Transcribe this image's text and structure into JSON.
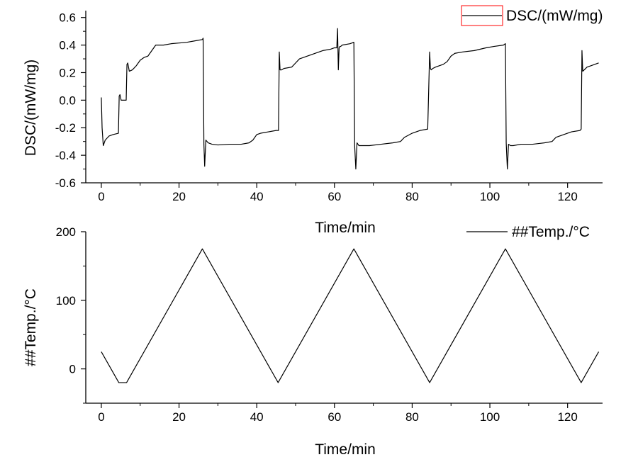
{
  "chart_data": [
    {
      "type": "line",
      "xlabel": "Time/min",
      "ylabel": "DSC/(mW/mg)",
      "xlim": [
        -4,
        129
      ],
      "ylim": [
        -0.6,
        0.65
      ],
      "x_ticks": [
        0,
        20,
        40,
        60,
        80,
        100,
        120
      ],
      "x_tick_labels": [
        "0",
        "20",
        "40",
        "60",
        "80",
        "100",
        "120"
      ],
      "y_ticks": [
        -0.6,
        -0.4,
        -0.2,
        0.0,
        0.2,
        0.4,
        0.6
      ],
      "y_tick_labels": [
        "-0.6",
        "-0.4",
        "-0.2",
        "0.0",
        "0.2",
        "0.4",
        "0.6"
      ],
      "grid": false,
      "legend_position": "top-right",
      "colors": {
        "line": "#000000",
        "legend_box": "#ff0000"
      },
      "series": [
        {
          "name": "DSC/(mW/mg)",
          "x": [
            0,
            0.2,
            0.5,
            1,
            2,
            3,
            4.4,
            4.6,
            4.8,
            5.1,
            5.4,
            6,
            6.4,
            6.6,
            6.8,
            7.2,
            8,
            9,
            10,
            11,
            12,
            13,
            14,
            16,
            18,
            20,
            22,
            24,
            26,
            26.2,
            26.4,
            26.6,
            26.9,
            27.5,
            28.5,
            30,
            33,
            36,
            38,
            39,
            40,
            41,
            43,
            45,
            45.6,
            45.8,
            46,
            46.4,
            47,
            49,
            50,
            51,
            53,
            55,
            57,
            59,
            60,
            60.6,
            60.8,
            61,
            61.2,
            61.4,
            61.6,
            62,
            64,
            65,
            65.2,
            65.5,
            65.8,
            66.3,
            67,
            69,
            72,
            75,
            77,
            78,
            80,
            82,
            84,
            84.5,
            84.7,
            84.9,
            85.3,
            86,
            88,
            89,
            90,
            91,
            93,
            96,
            99,
            101,
            103.5,
            104,
            104.2,
            104.5,
            104.8,
            105.3,
            106,
            108,
            111,
            114,
            116,
            117,
            119,
            121,
            123.2,
            123.5,
            123.7,
            123.9,
            124.3,
            125,
            126,
            127,
            128
          ],
          "values": [
            0.02,
            -0.2,
            -0.33,
            -0.29,
            -0.26,
            -0.25,
            -0.24,
            0.03,
            0.04,
            0.0,
            0.0,
            0.0,
            0.0,
            0.26,
            0.27,
            0.21,
            0.22,
            0.25,
            0.29,
            0.31,
            0.32,
            0.36,
            0.4,
            0.4,
            0.41,
            0.415,
            0.42,
            0.43,
            0.44,
            0.45,
            -0.32,
            -0.48,
            -0.29,
            -0.31,
            -0.32,
            -0.325,
            -0.32,
            -0.32,
            -0.31,
            -0.29,
            -0.25,
            -0.24,
            -0.23,
            -0.22,
            -0.22,
            0.35,
            0.22,
            0.22,
            0.23,
            0.24,
            0.27,
            0.3,
            0.32,
            0.34,
            0.36,
            0.37,
            0.38,
            0.38,
            0.52,
            0.22,
            0.38,
            0.39,
            0.39,
            0.4,
            0.41,
            0.42,
            -0.33,
            -0.5,
            -0.31,
            -0.33,
            -0.33,
            -0.33,
            -0.32,
            -0.31,
            -0.3,
            -0.27,
            -0.24,
            -0.22,
            -0.21,
            0.35,
            0.23,
            0.22,
            0.23,
            0.24,
            0.26,
            0.28,
            0.32,
            0.34,
            0.35,
            0.36,
            0.38,
            0.39,
            0.4,
            0.41,
            -0.31,
            -0.5,
            -0.32,
            -0.33,
            -0.33,
            -0.32,
            -0.32,
            -0.31,
            -0.3,
            -0.27,
            -0.25,
            -0.23,
            -0.22,
            -0.21,
            0.36,
            0.21,
            0.22,
            0.24,
            0.25,
            0.26,
            0.27
          ]
        }
      ]
    },
    {
      "type": "line",
      "xlabel": "Time/min",
      "ylabel": "##Temp./°C",
      "xlim": [
        -4,
        129
      ],
      "ylim": [
        -50,
        200
      ],
      "x_ticks": [
        0,
        20,
        40,
        60,
        80,
        100,
        120
      ],
      "x_tick_labels": [
        "0",
        "20",
        "40",
        "60",
        "80",
        "100",
        "120"
      ],
      "y_ticks": [
        0,
        100,
        200
      ],
      "y_tick_labels": [
        "0",
        "100",
        "200"
      ],
      "grid": false,
      "legend_position": "top-right",
      "colors": {
        "line": "#000000"
      },
      "series": [
        {
          "name": "##Temp./°C",
          "x": [
            0,
            4.5,
            6.5,
            26,
            45.5,
            65,
            84.5,
            104,
            123.5,
            128
          ],
          "values": [
            25,
            -20,
            -20,
            175,
            -20,
            175,
            -20,
            175,
            -20,
            25
          ]
        }
      ]
    }
  ]
}
